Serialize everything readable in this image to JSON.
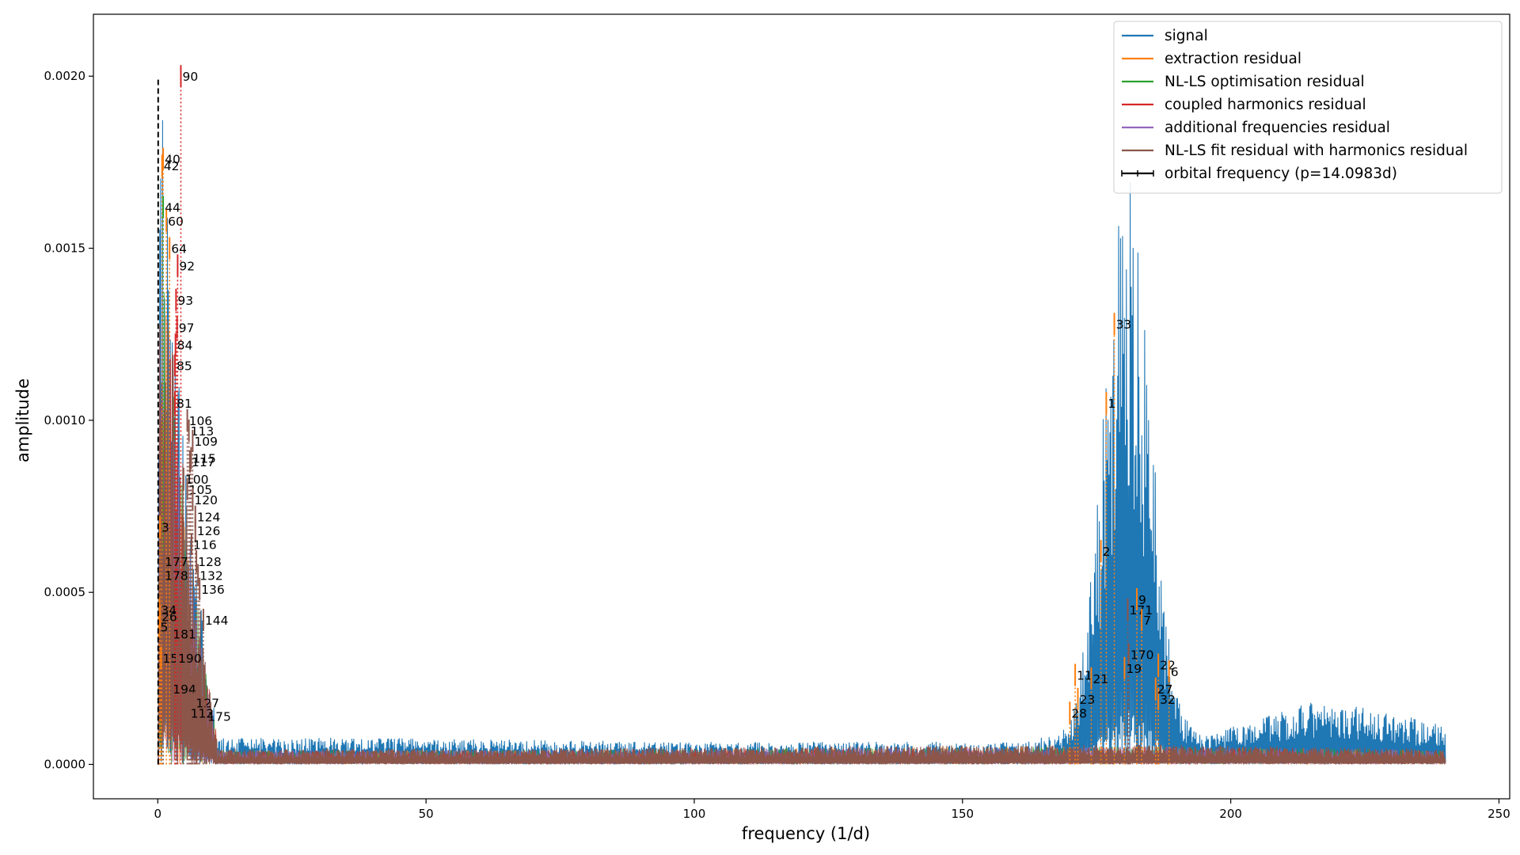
{
  "chart_data": {
    "type": "line",
    "xlabel": "frequency (1/d)",
    "ylabel": "amplitude",
    "xlim": [
      -12,
      252
    ],
    "ylim": [
      -0.0001,
      0.00218
    ],
    "x_ticks": [
      0,
      50,
      100,
      150,
      200,
      250
    ],
    "y_ticks": [
      0.0,
      0.0005,
      0.001,
      0.0015,
      0.002
    ],
    "x_tick_labels": [
      "0",
      "50",
      "100",
      "150",
      "200",
      "250"
    ],
    "y_tick_labels": [
      "0.0000",
      "0.0005",
      "0.0010",
      "0.0015",
      "0.0020"
    ],
    "grid": false,
    "legend_position": "top-right",
    "series": [
      {
        "name": "signal",
        "color": "#1f77b4",
        "x_range": [
          0,
          240
        ]
      },
      {
        "name": "extraction residual",
        "color": "#ff7f0e",
        "x_range": [
          0,
          240
        ]
      },
      {
        "name": "NL-LS optimisation residual",
        "color": "#2ca02c",
        "x_range": [
          0,
          240
        ]
      },
      {
        "name": "coupled harmonics residual",
        "color": "#d62728",
        "x_range": [
          0,
          240
        ]
      },
      {
        "name": "additional frequencies residual",
        "color": "#9467bd",
        "x_range": [
          0,
          240
        ]
      },
      {
        "name": "NL-LS fit residual with harmonics residual",
        "color": "#8c564b",
        "x_range": [
          0,
          240
        ]
      },
      {
        "name": "orbital frequency (p=14.0983d)",
        "color": "#000000",
        "x": [
          0.0709,
          0.0709
        ],
        "y": [
          0.0,
          0.00199
        ]
      }
    ],
    "envelope": {
      "signal_low_freq_peak": {
        "x": [
          0,
          0.3,
          0.8,
          1.5,
          2.5,
          4,
          6,
          8,
          10,
          11
        ],
        "y": [
          0.0,
          0.00175,
          0.0018,
          0.0016,
          0.0013,
          0.001,
          0.0007,
          0.00045,
          0.0002,
          0.0001
        ]
      },
      "signal_noise_floor": {
        "x": [
          11,
          40,
          100,
          160,
          168
        ],
        "y": [
          7e-05,
          7e-05,
          6e-05,
          6e-05,
          8e-05
        ]
      },
      "signal_high_freq_hump": {
        "x": [
          168,
          170,
          172,
          174,
          176,
          178,
          180,
          181,
          182,
          184,
          186,
          188,
          190,
          193,
          196
        ],
        "y": [
          8e-05,
          0.00012,
          0.00025,
          0.0005,
          0.0009,
          0.0013,
          0.00155,
          0.00157,
          0.0015,
          0.0012,
          0.0008,
          0.0004,
          0.00018,
          0.0001,
          8e-05
        ]
      },
      "signal_tail": {
        "x": [
          196,
          205,
          215,
          225,
          235,
          240
        ],
        "y": [
          8e-05,
          0.00012,
          0.00017,
          0.00015,
          0.00012,
          0.0001
        ]
      },
      "residual_floor": {
        "x": [
          0,
          11,
          60,
          168,
          190,
          240
        ],
        "y": [
          5e-05,
          4e-05,
          4e-05,
          5e-05,
          5e-05,
          4e-05
        ]
      }
    },
    "peaks": [
      {
        "label": "90",
        "x": 4.3,
        "y": 0.002,
        "color": "#d62728"
      },
      {
        "label": "40",
        "x": 1.0,
        "y": 0.00176,
        "color": "#ff7f0e"
      },
      {
        "label": "42",
        "x": 0.8,
        "y": 0.00174,
        "color": "#ff7f0e"
      },
      {
        "label": "44",
        "x": 1.0,
        "y": 0.00162,
        "color": "#2ca02c"
      },
      {
        "label": "60",
        "x": 1.6,
        "y": 0.00158,
        "color": "#ff7f0e"
      },
      {
        "label": "64",
        "x": 2.2,
        "y": 0.0015,
        "color": "#ff7f0e"
      },
      {
        "label": "92",
        "x": 3.7,
        "y": 0.00145,
        "color": "#d62728"
      },
      {
        "label": "93",
        "x": 3.4,
        "y": 0.00135,
        "color": "#d62728"
      },
      {
        "label": "97",
        "x": 3.6,
        "y": 0.00127,
        "color": "#d62728"
      },
      {
        "label": "84",
        "x": 3.3,
        "y": 0.00122,
        "color": "#d62728"
      },
      {
        "label": "85",
        "x": 3.2,
        "y": 0.00116,
        "color": "#d62728"
      },
      {
        "label": "81",
        "x": 3.2,
        "y": 0.00105,
        "color": "#d62728"
      },
      {
        "label": "106",
        "x": 5.5,
        "y": 0.001,
        "color": "#8c564b"
      },
      {
        "label": "113",
        "x": 5.8,
        "y": 0.00097,
        "color": "#8c564b"
      },
      {
        "label": "109",
        "x": 6.5,
        "y": 0.00094,
        "color": "#8c564b"
      },
      {
        "label": "115",
        "x": 6.2,
        "y": 0.00089,
        "color": "#8c564b"
      },
      {
        "label": "117",
        "x": 6.0,
        "y": 0.00088,
        "color": "#8c564b"
      },
      {
        "label": "100",
        "x": 4.8,
        "y": 0.00083,
        "color": "#8c564b"
      },
      {
        "label": "105",
        "x": 5.5,
        "y": 0.0008,
        "color": "#8c564b"
      },
      {
        "label": "120",
        "x": 6.5,
        "y": 0.00077,
        "color": "#8c564b"
      },
      {
        "label": "124",
        "x": 7.0,
        "y": 0.00072,
        "color": "#8c564b"
      },
      {
        "label": "126",
        "x": 7.0,
        "y": 0.00068,
        "color": "#8c564b"
      },
      {
        "label": "3",
        "x": 0.4,
        "y": 0.00069,
        "color": "#ff7f0e"
      },
      {
        "label": "116",
        "x": 6.3,
        "y": 0.00064,
        "color": "#8c564b"
      },
      {
        "label": "177",
        "x": 1.0,
        "y": 0.00059,
        "color": "#8c564b"
      },
      {
        "label": "178",
        "x": 1.0,
        "y": 0.00055,
        "color": "#8c564b"
      },
      {
        "label": "128",
        "x": 7.2,
        "y": 0.00059,
        "color": "#8c564b"
      },
      {
        "label": "132",
        "x": 7.5,
        "y": 0.00055,
        "color": "#8c564b"
      },
      {
        "label": "136",
        "x": 7.8,
        "y": 0.00051,
        "color": "#8c564b"
      },
      {
        "label": "34",
        "x": 0.3,
        "y": 0.00045,
        "color": "#ff7f0e"
      },
      {
        "label": "26",
        "x": 0.4,
        "y": 0.00043,
        "color": "#ff7f0e"
      },
      {
        "label": "5",
        "x": 0.2,
        "y": 0.0004,
        "color": "#ff7f0e"
      },
      {
        "label": "144",
        "x": 8.5,
        "y": 0.00042,
        "color": "#8c564b"
      },
      {
        "label": "181",
        "x": 2.5,
        "y": 0.00038,
        "color": "#8c564b"
      },
      {
        "label": "15",
        "x": 0.6,
        "y": 0.00031,
        "color": "#ff7f0e"
      },
      {
        "label": "190",
        "x": 3.5,
        "y": 0.00031,
        "color": "#8c564b"
      },
      {
        "label": "194",
        "x": 2.5,
        "y": 0.00022,
        "color": "#8c564b"
      },
      {
        "label": "127",
        "x": 6.8,
        "y": 0.00018,
        "color": "#8c564b"
      },
      {
        "label": "112",
        "x": 5.8,
        "y": 0.00015,
        "color": "#8c564b"
      },
      {
        "label": "175",
        "x": 9.0,
        "y": 0.00014,
        "color": "#8c564b"
      },
      {
        "label": "33",
        "x": 178.3,
        "y": 0.00128,
        "color": "#ff7f0e"
      },
      {
        "label": "1",
        "x": 176.8,
        "y": 0.00105,
        "color": "#ff7f0e"
      },
      {
        "label": "2",
        "x": 175.8,
        "y": 0.00062,
        "color": "#ff7f0e"
      },
      {
        "label": "9",
        "x": 182.5,
        "y": 0.00048,
        "color": "#ff7f0e"
      },
      {
        "label": "171",
        "x": 180.8,
        "y": 0.00045,
        "color": "#8c564b"
      },
      {
        "label": "7",
        "x": 183.4,
        "y": 0.00042,
        "color": "#ff7f0e"
      },
      {
        "label": "170",
        "x": 181.0,
        "y": 0.00032,
        "color": "#8c564b"
      },
      {
        "label": "22",
        "x": 186.5,
        "y": 0.00029,
        "color": "#ff7f0e"
      },
      {
        "label": "6",
        "x": 188.5,
        "y": 0.00027,
        "color": "#ff7f0e"
      },
      {
        "label": "19",
        "x": 180.2,
        "y": 0.00028,
        "color": "#ff7f0e"
      },
      {
        "label": "11",
        "x": 171.0,
        "y": 0.00026,
        "color": "#ff7f0e"
      },
      {
        "label": "21",
        "x": 174.0,
        "y": 0.00025,
        "color": "#ff7f0e"
      },
      {
        "label": "32",
        "x": 186.5,
        "y": 0.00019,
        "color": "#ff7f0e"
      },
      {
        "label": "23",
        "x": 171.5,
        "y": 0.00019,
        "color": "#ff7f0e"
      },
      {
        "label": "28",
        "x": 170.0,
        "y": 0.00015,
        "color": "#ff7f0e"
      },
      {
        "label": "27",
        "x": 186.0,
        "y": 0.00022,
        "color": "#ff7f0e"
      }
    ]
  },
  "legend": [
    {
      "label": "signal",
      "color": "#1f77b4"
    },
    {
      "label": "extraction residual",
      "color": "#ff7f0e"
    },
    {
      "label": "NL-LS optimisation residual",
      "color": "#2ca02c"
    },
    {
      "label": "coupled harmonics residual",
      "color": "#d62728"
    },
    {
      "label": "additional frequencies residual",
      "color": "#9467bd"
    },
    {
      "label": "NL-LS fit residual with harmonics residual",
      "color": "#8c564b"
    },
    {
      "label": "orbital frequency (p=14.0983d)",
      "color": "#000000"
    }
  ]
}
